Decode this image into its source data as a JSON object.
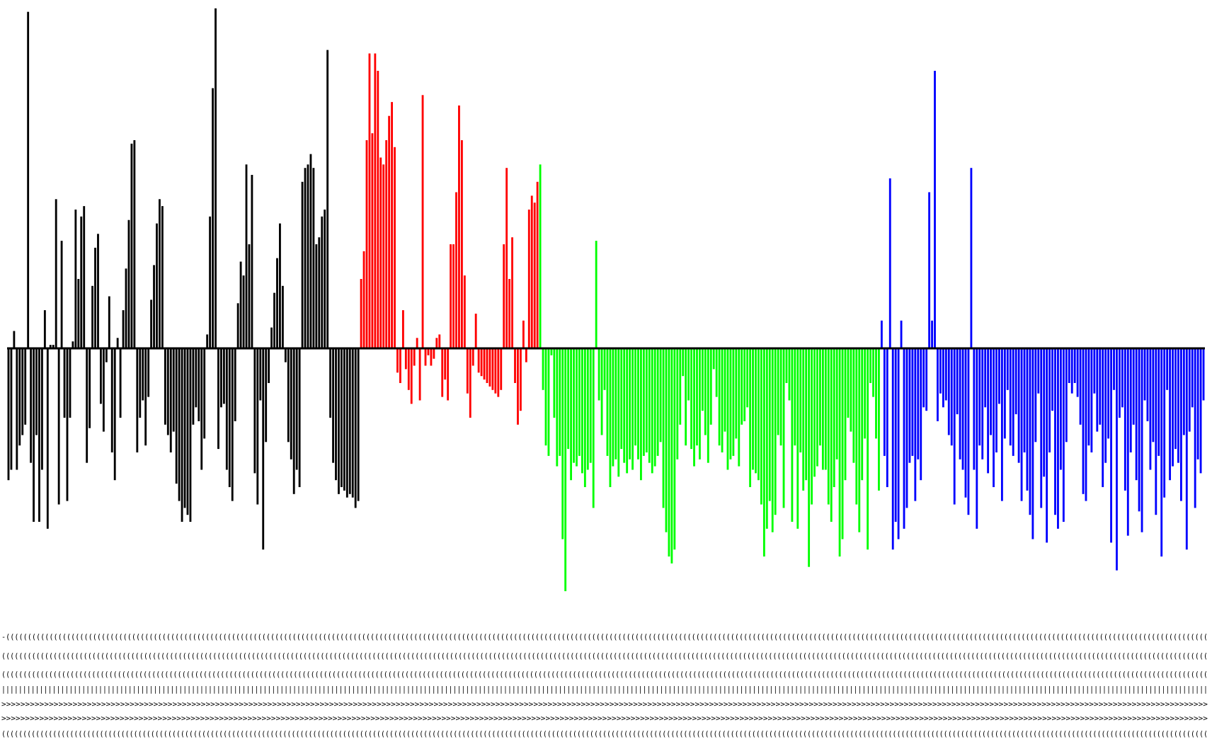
{
  "chart_data": {
    "type": "bar",
    "title": "",
    "xlabel": "",
    "ylabel": "",
    "ylim": [
      -100,
      100
    ],
    "grid": false,
    "legend": "none",
    "axis_line": true,
    "tick_labels_legible": false,
    "series": [
      {
        "color": "#000000",
        "values": [
          -38,
          -35,
          5,
          -35,
          -28,
          -25,
          -22,
          97,
          -33,
          -50,
          -25,
          -50,
          -35,
          11,
          -52,
          1,
          1,
          43,
          -45,
          31,
          -20,
          -44,
          -20,
          2,
          40,
          20,
          38,
          41,
          -33,
          -23,
          18,
          29,
          33,
          -16,
          -24,
          -4,
          15,
          -30,
          -38,
          3,
          -20,
          11,
          23,
          37,
          59,
          60,
          -30,
          -20,
          -15,
          -28,
          -14,
          14,
          24,
          36,
          43,
          41,
          -22,
          -25,
          -30,
          -24,
          -39,
          -44,
          -50,
          -46,
          -48,
          -50,
          -22,
          -17,
          -21,
          -35,
          -26,
          4,
          38,
          75,
          98,
          -29,
          -17,
          -16,
          -35,
          -40,
          -44,
          -21,
          13,
          25,
          21,
          53,
          30,
          50,
          -36,
          -45,
          -15,
          -58,
          -27,
          -10,
          6,
          16,
          26,
          36,
          18,
          -4,
          -27,
          -32,
          -42,
          -35,
          -40,
          48,
          52,
          53,
          56,
          52,
          30,
          32,
          38,
          40,
          86,
          -20,
          -33,
          -38,
          -42,
          -40,
          -41,
          -43,
          -42,
          -43,
          -46,
          -44
        ]
      },
      {
        "color": "#ff0000",
        "values": [
          20,
          28,
          60,
          85,
          62,
          85,
          80,
          55,
          53,
          60,
          67,
          71,
          58,
          -7,
          -10,
          11,
          -6,
          -12,
          -16,
          -5,
          3,
          -15,
          73,
          -5,
          -2,
          -5,
          -3,
          3,
          4,
          -14,
          -9,
          -15,
          30,
          30,
          45,
          70,
          60,
          21,
          -13,
          -20,
          -5,
          10,
          -7,
          -8,
          -9,
          -10,
          -11,
          -12,
          -13,
          -14,
          -12,
          30,
          52,
          20,
          32,
          -10,
          -22,
          -18,
          8,
          -4,
          40,
          44,
          42,
          48
        ]
      },
      {
        "color": "#00ff00",
        "values": [
          53,
          -12,
          -28,
          -31,
          -2,
          -20,
          -34,
          -31,
          -55,
          -70,
          -29,
          -38,
          -33,
          -34,
          -31,
          -36,
          -40,
          -35,
          -33,
          -46,
          31,
          -15,
          -25,
          -12,
          -31,
          -40,
          -34,
          -32,
          -37,
          -29,
          -33,
          -36,
          -32,
          -35,
          -28,
          -32,
          -38,
          -31,
          -30,
          -33,
          -36,
          -34,
          -31,
          -27,
          -46,
          -53,
          -60,
          -62,
          -58,
          -32,
          -22,
          -8,
          -28,
          -15,
          -29,
          -34,
          -28,
          -32,
          -18,
          -25,
          -33,
          -22,
          -6,
          -14,
          -28,
          -30,
          -24,
          -35,
          -32,
          -31,
          -26,
          -34,
          -22,
          -21,
          -17,
          -40,
          -35,
          -36,
          -38,
          -45,
          -60,
          -52,
          -44,
          -53,
          -48,
          -25,
          -28,
          -46,
          -10,
          -15,
          -50,
          -28,
          -52,
          -30,
          -41,
          -38,
          -63,
          -45,
          -37,
          -34,
          -28,
          -35,
          -35,
          -45,
          -50,
          -40,
          -32,
          -60,
          -55,
          -38,
          -20,
          -24,
          -33,
          -45,
          -53,
          -38,
          -26,
          -58,
          -10,
          -14,
          -26,
          -41
        ]
      },
      {
        "color": "#0000ff",
        "values": [
          8,
          -31,
          -40,
          49,
          -58,
          -50,
          -55,
          8,
          -52,
          -46,
          -33,
          -31,
          -44,
          -32,
          -38,
          -17,
          -18,
          45,
          8,
          80,
          -21,
          -13,
          -17,
          -15,
          -25,
          -28,
          -45,
          -19,
          -32,
          -35,
          -43,
          -48,
          52,
          -35,
          -52,
          -28,
          -32,
          -17,
          -36,
          -25,
          -40,
          -30,
          -16,
          -44,
          -26,
          -12,
          -28,
          -31,
          -19,
          -33,
          -44,
          -30,
          -41,
          -48,
          -55,
          -27,
          -13,
          -46,
          -37,
          -56,
          -30,
          -18,
          -48,
          -52,
          -35,
          -50,
          -27,
          -10,
          -13,
          -10,
          -14,
          -22,
          -42,
          -44,
          -28,
          -30,
          -13,
          -24,
          -22,
          -40,
          -33,
          -26,
          -56,
          -12,
          -64,
          -20,
          -17,
          -41,
          -54,
          -30,
          -22,
          -38,
          -47,
          -53,
          -15,
          -21,
          -35,
          -27,
          -48,
          -31,
          -60,
          -43,
          -12,
          -38,
          -34,
          -29,
          -33,
          -44,
          -25,
          -58,
          -24,
          -17,
          -46,
          -32,
          -36,
          -15
        ]
      }
    ],
    "x_tick_rows": [
      "-(((((((((((((((((((((((((((((((((((((((((((((((((((((((((((((((((((((((((((((((((((((((((((((((((((((((((((((((((((((((((((((((((((((((((((((((((((((((((((((((((((((((((((((((((((((((((((((((((((((((((((((((((((((((((((((((((((((((((((((((((((((((((((((((((((((((((((((((((((((",
      "((((((((((((((((((((((((((((((((((((((((((((((((((((((((((((((((((((((((((((((((((((((((((((((((((((((((((((((((((((((((((((((((((((((((((((((((((((((((((((((((((((((((((((((((((((((((((((((((((((((((((((((((((((((((((((((((((((((((((((((((((((((((((((((((((((((((((((((((((((((((",
      "(((((((((((((((((((((((((((((((((((((((((((((((((((((((((((((((((((((((((((((((((((((((((((((((((((((((((((((((((((((((((((((((((((((((((((((((((((((((((((((((((((((((((((((((((((((((((((((((((((((((((((((((((((((((((((((((((((((((((((((((((((((((((((((((((((((((((((((((((((((((((",
      "||||||||||||||||||||||||||||||||||||||||||||||||||||||||||||||||||||||||||||||||||||||||||||||||||||||||||||||||||||||||||||||||||||||||||||||||||||||||||||||||||||||||||||||||||||||||||||||||||||||||||||||||||||||||||||||||||||||||||||||||||||||||||||||||||||||||||||||||||||||||||||||",
      ">>>>>>>>>>>>>>>>>>>>>>>>>>>>>>>>>>>>>>>>>>>>>>>>>>>>>>>>>>>>>>>>>>>>>>>>>>>>>>>>>>>>>>>>>>>>>>>>>>>>>>>>>>>>>>>>>>>>>>>>>>>>>>>>>>>>>>>>>>>>>>>>>>>>>>>>>>>>>>>>>>>>>>>>>>>>>>>>>>>>>>>>>>>>>>>>>>>>>>>>>>>>>>>>>>>>>>>>>>>>>>>>>>>>>>>>>>>>>>>>>>>>>>>>>>>>>>",
      ">>>>>>>>>>>>>>>>>>>>>>>>>>>>>>>>>>>>>>>>>>>>>>>>>>>>>>>>>>>>>>>>>>>>>>>>>>>>>>>>>>>>>>>>>>>>>>>>>>>>>>>>>>>>>>>>>>>>>>>>>>>>>>>>>>>>>>>>>>>>>>>>>>>>>>>>>>>>>>>>>>>>>>>>>>>>>>>>>>>>>>>>>>>>>>>>>>>>>>>>>>>>>>>>>>>>>>>>>>>>>>>>>>>>>>>>>>>>>>>>>>>>>>>>>>>>>>>",
      "((((((((((((((((((((((((((((((((((((((((((((((((((((((((((((((((((((((((((((((((((((((((((((((((((((((((((((((((((((((((((((((((((((((((((((((((((((((((((((((((((((((((((((((((((((((((((((((((((((((((((((((((((((((((((((((((((((((((((((((((((((((((((((((((((((((((((((((((((((((((((("
    ]
  }
}
